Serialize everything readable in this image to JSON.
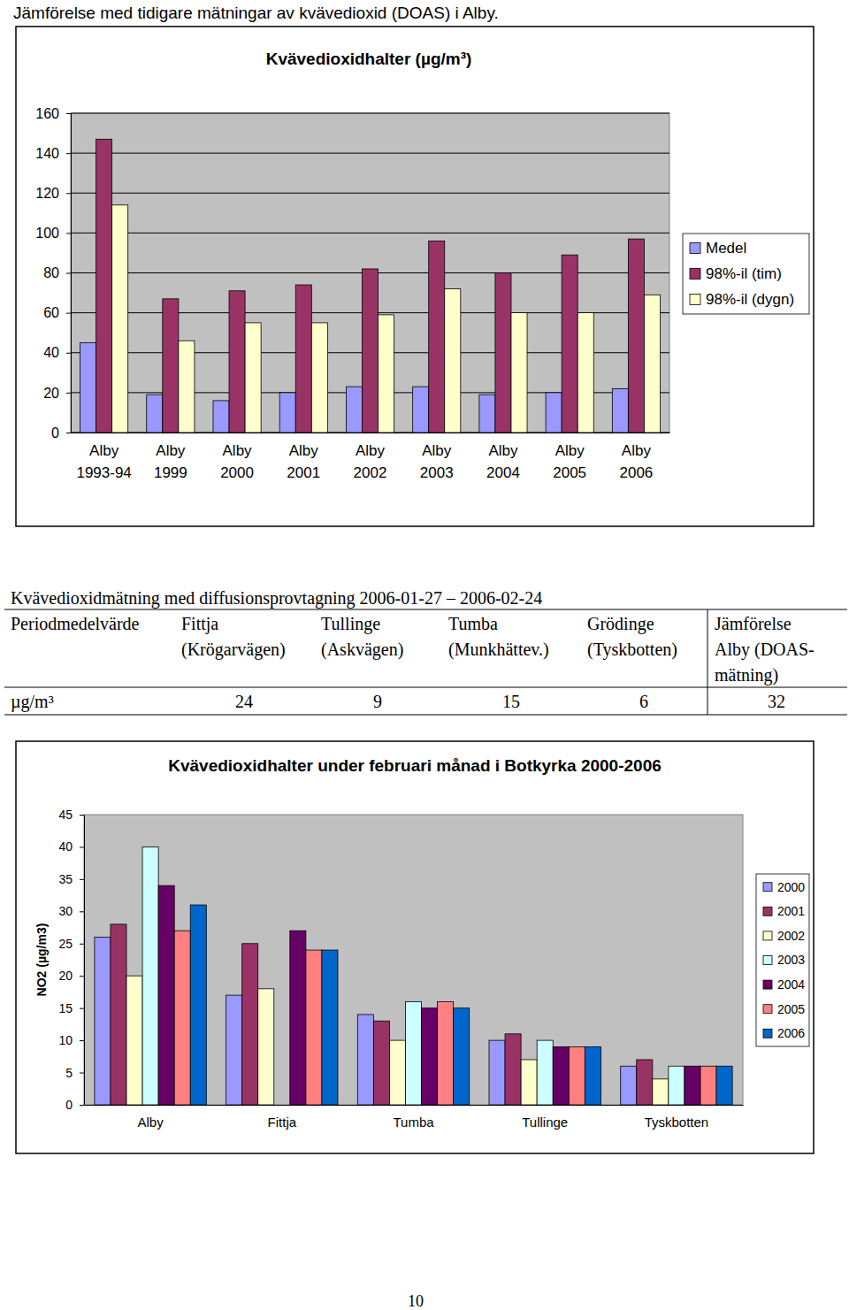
{
  "heading": {
    "title": "Jämförelse med tidigare mätningar av kvävedioxid (DOAS) i Alby."
  },
  "chart_data": [
    {
      "type": "bar",
      "title": "Kvävedioxidhalter (µg/m³)",
      "categories": [
        "Alby 1993-94",
        "Alby 1999",
        "Alby 2000",
        "Alby 2001",
        "Alby 2002",
        "Alby 2003",
        "Alby 2004",
        "Alby 2005",
        "Alby 2006"
      ],
      "series": [
        {
          "name": "Medel",
          "color": "#9999ff",
          "values": [
            45,
            19,
            16,
            20,
            23,
            23,
            19,
            20,
            22
          ]
        },
        {
          "name": "98%-il (tim)",
          "color": "#993366",
          "values": [
            147,
            67,
            71,
            74,
            82,
            96,
            80,
            89,
            97
          ]
        },
        {
          "name": "98%-il (dygn)",
          "color": "#ffffcc",
          "values": [
            114,
            46,
            55,
            55,
            59,
            72,
            60,
            60,
            69
          ]
        }
      ],
      "ylim": [
        0,
        160
      ],
      "yticks": [
        0,
        20,
        40,
        60,
        80,
        100,
        120,
        140,
        160
      ],
      "grid": true,
      "legend": "right"
    },
    {
      "type": "bar",
      "title": "Kvävedioxidhalter under februari månad i Botkyrka 2000-2006",
      "ylabel": "NO2 (µg/m3)",
      "categories": [
        "Alby",
        "Fittja",
        "Tumba",
        "Tullinge",
        "Tyskbotten"
      ],
      "series": [
        {
          "name": "2000",
          "color": "#9999ff",
          "values": [
            26,
            17,
            14,
            10,
            6
          ]
        },
        {
          "name": "2001",
          "color": "#993366",
          "values": [
            28,
            25,
            13,
            11,
            7
          ]
        },
        {
          "name": "2002",
          "color": "#ffffcc",
          "values": [
            20,
            18,
            10,
            7,
            4
          ]
        },
        {
          "name": "2003",
          "color": "#ccffff",
          "values": [
            40,
            null,
            16,
            10,
            6
          ]
        },
        {
          "name": "2004",
          "color": "#660066",
          "values": [
            34,
            27,
            15,
            9,
            6
          ]
        },
        {
          "name": "2005",
          "color": "#ff8080",
          "values": [
            27,
            24,
            16,
            9,
            6
          ]
        },
        {
          "name": "2006",
          "color": "#0066cc",
          "values": [
            31,
            24,
            15,
            9,
            6
          ]
        }
      ],
      "ylim": [
        0,
        45
      ],
      "yticks": [
        0,
        5,
        10,
        15,
        20,
        25,
        30,
        35,
        40,
        45
      ],
      "grid": false,
      "legend": "right"
    }
  ],
  "table": {
    "title": "Kvävedioxidmätning med diffusionsprovtagning 2006-01-27 – 2006-02-24",
    "header": [
      [
        "Periodmedelvärde"
      ],
      [
        "Fittja",
        "(Krögarvägen)"
      ],
      [
        "Tullinge",
        "(Askvägen)"
      ],
      [
        "Tumba",
        "(Munkhättev.)"
      ],
      [
        "Grödinge",
        "(Tyskbotten)"
      ],
      [
        "Jämförelse",
        "Alby (DOAS-",
        "mätning)"
      ]
    ],
    "rows": [
      [
        "µg/m³",
        24,
        9,
        15,
        6,
        32
      ]
    ]
  },
  "page_number": 10
}
